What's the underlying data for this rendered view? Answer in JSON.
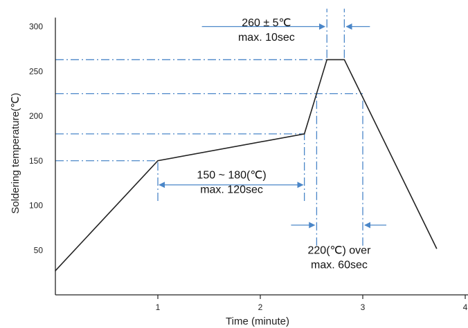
{
  "chart_data": {
    "type": "line",
    "xlabel": "Time (minute)",
    "ylabel": "Soldering temperature(℃)",
    "xlim": [
      0,
      4
    ],
    "ylim": [
      0,
      310
    ],
    "x_ticks": [
      1,
      2,
      3,
      4
    ],
    "y_ticks": [
      50,
      100,
      150,
      200,
      250,
      300
    ],
    "grid": false,
    "series": [
      {
        "x": [
          0,
          1,
          2.43,
          2.65,
          2.82,
          3.72
        ],
        "y": [
          27,
          150,
          180,
          263,
          263,
          52
        ]
      }
    ],
    "reference_levels": [
      {
        "y": 263,
        "x_end": 2.65
      },
      {
        "y": 225,
        "x_end": 3.0
      },
      {
        "y": 180,
        "x_end": 2.43
      },
      {
        "y": 150,
        "x_end": 1.0
      }
    ],
    "reference_times": [
      {
        "x": 1.0,
        "y_from": 105,
        "y_to": 150
      },
      {
        "x": 2.43,
        "y_from": 105,
        "y_to": 180
      },
      {
        "x": 2.55,
        "y_from": 55,
        "y_to": 225
      },
      {
        "x": 2.65,
        "y_from": 265,
        "y_to": 320
      },
      {
        "x": 2.82,
        "y_from": 265,
        "y_to": 320
      },
      {
        "x": 3.0,
        "y_from": 55,
        "y_to": 225
      }
    ],
    "annotations": [
      {
        "id": "peak",
        "lines": [
          "260 ± 5℃",
          "max. 10sec"
        ]
      },
      {
        "id": "preheat",
        "lines": [
          "150 ~ 180(℃)",
          "max. 120sec"
        ]
      },
      {
        "id": "over220",
        "lines": [
          "220(℃) over",
          "max. 60sec"
        ]
      }
    ],
    "colors": {
      "curve": "#222222",
      "guide": "#4a86c8",
      "axis": "#222222"
    }
  }
}
